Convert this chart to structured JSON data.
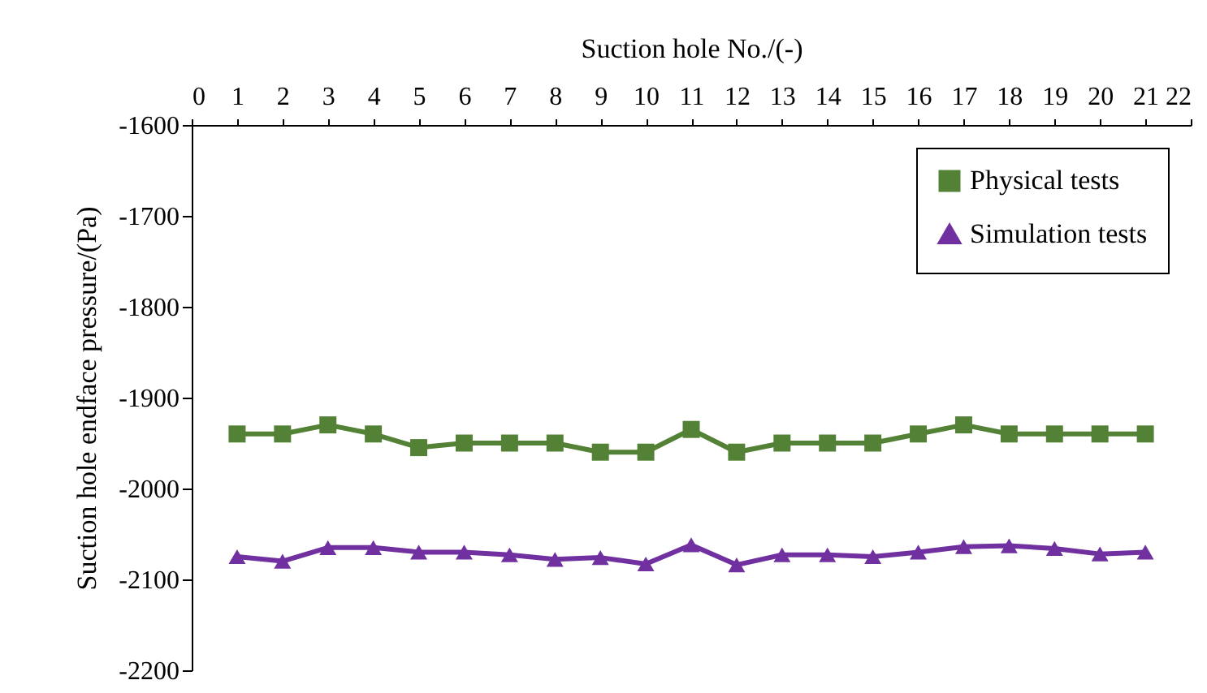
{
  "chart_data": {
    "type": "line",
    "xlabel": "Suction hole No./(-)",
    "ylabel": "Suction hole endface pressure/(Pa)",
    "x": [
      1,
      2,
      3,
      4,
      5,
      6,
      7,
      8,
      9,
      10,
      11,
      12,
      13,
      14,
      15,
      16,
      17,
      18,
      19,
      20,
      21
    ],
    "series": [
      {
        "name": "Physical tests",
        "color": "#538135",
        "marker": "square",
        "values": [
          -1940,
          -1940,
          -1930,
          -1940,
          -1955,
          -1950,
          -1950,
          -1950,
          -1960,
          -1960,
          -1935,
          -1960,
          -1950,
          -1950,
          -1950,
          -1940,
          -1930,
          -1940,
          -1940,
          -1940,
          -1940
        ]
      },
      {
        "name": "Simulation tests",
        "color": "#7030a0",
        "marker": "triangle",
        "values": [
          -2075,
          -2080,
          -2065,
          -2065,
          -2070,
          -2070,
          -2073,
          -2078,
          -2076,
          -2083,
          -2062,
          -2084,
          -2073,
          -2073,
          -2075,
          -2070,
          -2064,
          -2063,
          -2066,
          -2072,
          -2070
        ]
      }
    ],
    "xlim": [
      0,
      22
    ],
    "xticks": [
      0,
      1,
      2,
      3,
      4,
      5,
      6,
      7,
      8,
      9,
      10,
      11,
      12,
      13,
      14,
      15,
      16,
      17,
      18,
      19,
      20,
      21,
      22
    ],
    "ylim": [
      -2200,
      -1600
    ],
    "yticks": [
      -2200,
      -2100,
      -2000,
      -1900,
      -1800,
      -1700,
      -1600
    ],
    "grid": false,
    "legend": "top right",
    "line_style": "solid"
  }
}
